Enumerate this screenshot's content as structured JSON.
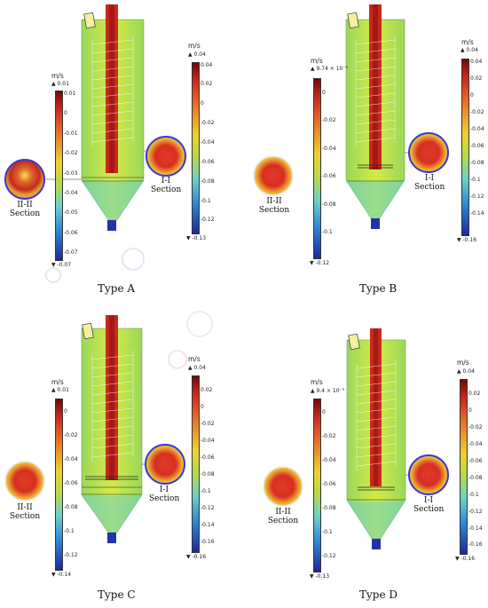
{
  "panels": [
    {
      "id": "a",
      "type_label": "Type A",
      "section_i_label": "I-I",
      "section_ii_label": "II-II",
      "section_word": "Section",
      "bar1": {
        "unit": "m/s",
        "max_label": "▲ 0.01",
        "min_label": "▼ -0.07",
        "ticks": [
          "0.01",
          "0",
          "-0.01",
          "-0.02",
          "-0.03",
          "-0.04",
          "-0.05",
          "-0.06",
          "-0.07"
        ]
      },
      "bar2": {
        "unit": "m/s",
        "max_label": "▲ 0.04",
        "min_label": "▼ -0.13",
        "ticks": [
          "0.04",
          "0.02",
          "0",
          "-0.02",
          "-0.04",
          "-0.06",
          "-0.08",
          "-0.1",
          "-0.12"
        ]
      }
    },
    {
      "id": "b",
      "type_label": "Type B",
      "section_i_label": "I-I",
      "section_ii_label": "II-II",
      "section_word": "Section",
      "bar1": {
        "unit": "m/s",
        "max_label": "▲ 9.74 × 10⁻³",
        "min_label": "▼ -0.12",
        "ticks": [
          "0",
          "-0.02",
          "-0.04",
          "-0.06",
          "-0.08",
          "-0.1"
        ]
      },
      "bar2": {
        "unit": "m/s",
        "max_label": "▲ 0.04",
        "min_label": "▼ -0.16",
        "ticks": [
          "0.04",
          "0.02",
          "0",
          "-0.02",
          "-0.04",
          "-0.06",
          "-0.08",
          "-0.1",
          "-0.12",
          "-0.14"
        ]
      }
    },
    {
      "id": "c",
      "type_label": "Type C",
      "section_i_label": "I-I",
      "section_ii_label": "II-II",
      "section_word": "Section",
      "bar1": {
        "unit": "m/s",
        "max_label": "▲ 0.01",
        "min_label": "▼ -0.14",
        "ticks": [
          "0",
          "-0.02",
          "-0.04",
          "-0.06",
          "-0.08",
          "-0.1",
          "-0.12"
        ]
      },
      "bar2": {
        "unit": "m/s",
        "max_label": "▲ 0.04",
        "min_label": "▼ -0.16",
        "ticks": [
          "0.02",
          "0",
          "-0.02",
          "-0.04",
          "-0.06",
          "-0.08",
          "-0.1",
          "-0.12",
          "-0.14",
          "-0.16"
        ]
      }
    },
    {
      "id": "d",
      "type_label": "Type D",
      "section_i_label": "I-I",
      "section_ii_label": "II-II",
      "section_word": "Section",
      "bar1": {
        "unit": "m/s",
        "max_label": "▲ 9.4 × 10⁻³",
        "min_label": "▼ -0.13",
        "ticks": [
          "0",
          "-0.02",
          "-0.04",
          "-0.06",
          "-0.08",
          "-0.1",
          "-0.12"
        ]
      },
      "bar2": {
        "unit": "m/s",
        "max_label": "▲ 0.04",
        "min_label": "▼ -0.16",
        "ticks": [
          "0.02",
          "0",
          "-0.02",
          "-0.04",
          "-0.06",
          "-0.08",
          "-0.1",
          "-0.12",
          "-0.14",
          "-0.16"
        ]
      }
    }
  ]
}
